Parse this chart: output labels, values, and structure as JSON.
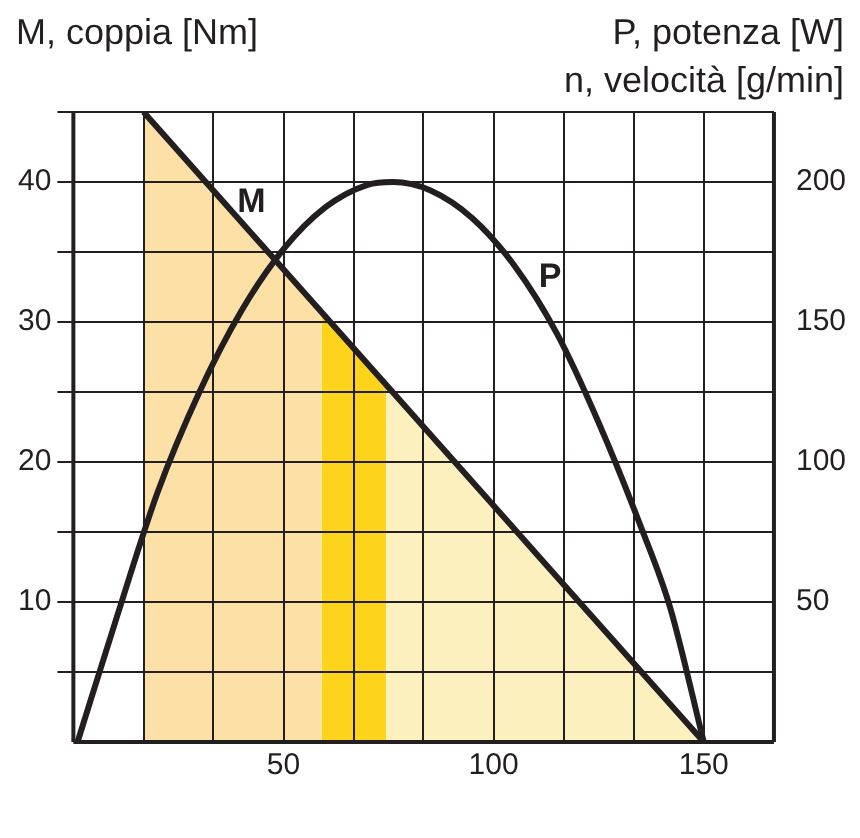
{
  "chart_data": {
    "type": "line",
    "ylabel": "M, coppia [Nm]",
    "y2label": "P, potenza [W]",
    "xlabel": "n, velocità [g/min]",
    "xlim": [
      0,
      166.7
    ],
    "xticks": [
      {
        "value": 16.7,
        "label": null
      },
      {
        "value": 33.3,
        "label": null
      },
      50,
      {
        "value": 66.7,
        "label": null
      },
      {
        "value": 83.3,
        "label": null
      },
      100,
      {
        "value": 116.7,
        "label": null
      },
      {
        "value": 133.3,
        "label": null
      },
      150,
      {
        "value": 166.7,
        "label": null
      }
    ],
    "ylim": [
      0,
      45
    ],
    "yticks": [
      {
        "value": 5,
        "label": null
      },
      10,
      {
        "value": 15,
        "label": null
      },
      20,
      {
        "value": 25,
        "label": null
      },
      30,
      {
        "value": 35,
        "label": null
      },
      40,
      {
        "value": 45,
        "label": null
      }
    ],
    "y2lim": [
      0,
      225
    ],
    "y2ticks": [
      50,
      100,
      150,
      200
    ],
    "grid": true,
    "legend": false,
    "marker": "none",
    "line_style": "solid",
    "series": [
      {
        "type": "area",
        "color": "#fde0a5",
        "x": [
          16.7,
          59
        ],
        "values": [
          45,
          30.7
        ]
      },
      {
        "type": "area",
        "color": "#fdd31c",
        "x": [
          59,
          74.5
        ],
        "values": [
          30.7,
          25.5
        ]
      },
      {
        "type": "area",
        "color": "#fdf0bf",
        "x": [
          74.5,
          150
        ],
        "values": [
          25.5,
          0
        ]
      },
      {
        "type": "line",
        "name": "M",
        "color": "#231f20",
        "x": [
          16.7,
          33.3,
          150
        ],
        "values": [
          45,
          39.4,
          0
        ]
      },
      {
        "type": "line",
        "name": "P",
        "color": "#231f20",
        "axis": "y2",
        "x": [
          1,
          10,
          20,
          30,
          40,
          50,
          60,
          70,
          76,
          85,
          95,
          105,
          115,
          125,
          135,
          142,
          150
        ],
        "values": [
          0,
          43,
          89,
          125,
          154,
          176,
          191,
          199,
          200,
          197,
          187,
          170,
          146,
          114,
          77,
          48,
          0
        ]
      }
    ]
  }
}
